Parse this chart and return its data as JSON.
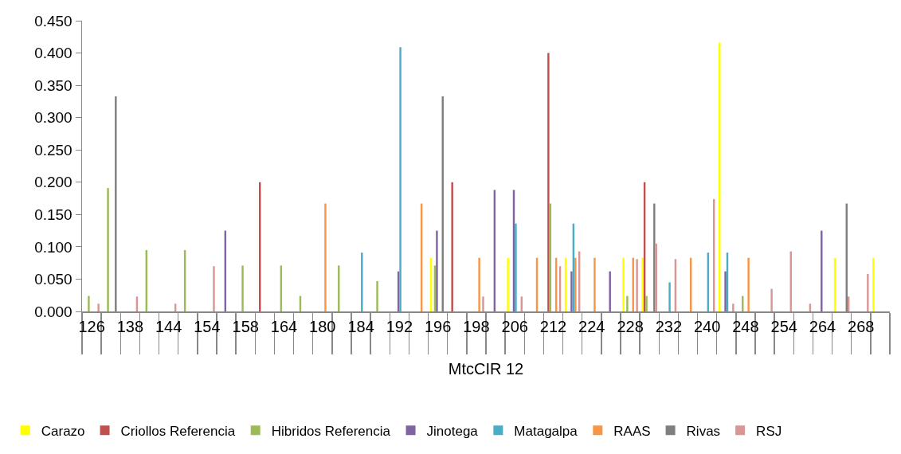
{
  "chart_data": {
    "type": "bar",
    "xlabel": "MtcCIR 12",
    "legend": "bottom",
    "categories": [
      "126",
      null,
      "138",
      null,
      "144",
      null,
      "154",
      null,
      "158",
      null,
      "164",
      null,
      "180",
      null,
      "184",
      null,
      "192",
      null,
      "196",
      null,
      "198",
      null,
      "206",
      null,
      "212",
      null,
      "224",
      null,
      "228",
      null,
      "232",
      null,
      "240",
      null,
      "248",
      null,
      "254",
      null,
      "264",
      null,
      "268",
      null
    ],
    "ylim": [
      0,
      0.45
    ],
    "yticks": [
      {
        "value": 0,
        "label": "0.000"
      },
      {
        "value": 0.05,
        "label": "0.050"
      },
      {
        "value": 0.1,
        "label": "0.100"
      },
      {
        "value": 0.15,
        "label": "0.150"
      },
      {
        "value": 0.2,
        "label": "0.200"
      },
      {
        "value": 0.25,
        "label": "0.250"
      },
      {
        "value": 0.3,
        "label": "0.300"
      },
      {
        "value": 0.35,
        "label": "0.350"
      },
      {
        "value": 0.4,
        "label": "0.400"
      },
      {
        "value": 0.45,
        "label": "0.450"
      }
    ],
    "series": [
      {
        "name": "Carazo",
        "color": "#ffff00",
        "values": [
          null,
          null,
          null,
          null,
          null,
          null,
          null,
          null,
          null,
          null,
          null,
          null,
          null,
          null,
          null,
          null,
          null,
          null,
          0.083,
          null,
          null,
          null,
          0.083,
          null,
          null,
          0.083,
          null,
          null,
          0.083,
          0.083,
          null,
          null,
          null,
          0.416,
          null,
          null,
          null,
          null,
          null,
          0.083,
          null,
          0.083
        ]
      },
      {
        "name": "Criollos Referencia",
        "color": "#c0504d",
        "values": [
          null,
          null,
          null,
          null,
          null,
          null,
          null,
          null,
          null,
          0.2,
          null,
          null,
          null,
          null,
          null,
          null,
          null,
          null,
          null,
          0.2,
          null,
          null,
          null,
          null,
          0.4,
          null,
          null,
          null,
          null,
          0.2,
          null,
          null,
          null,
          null,
          null,
          null,
          null,
          null,
          null,
          null,
          null,
          null
        ]
      },
      {
        "name": "Hibridos Referencia",
        "color": "#9bbb59",
        "values": [
          0.024,
          0.191,
          null,
          0.095,
          null,
          0.095,
          null,
          null,
          0.071,
          null,
          0.071,
          0.024,
          null,
          0.071,
          null,
          0.047,
          null,
          null,
          0.071,
          null,
          null,
          null,
          null,
          null,
          0.167,
          null,
          null,
          null,
          0.024,
          0.024,
          null,
          null,
          null,
          null,
          0.024,
          null,
          null,
          null,
          null,
          null,
          null,
          null
        ]
      },
      {
        "name": "Jinotega",
        "color": "#8064a2",
        "values": [
          null,
          null,
          null,
          null,
          null,
          null,
          null,
          0.125,
          null,
          null,
          null,
          null,
          null,
          null,
          null,
          null,
          0.062,
          null,
          0.125,
          null,
          null,
          0.188,
          0.188,
          null,
          null,
          0.062,
          null,
          0.062,
          null,
          null,
          null,
          null,
          null,
          0.062,
          null,
          null,
          null,
          null,
          0.125,
          null,
          null,
          null
        ]
      },
      {
        "name": "Matagalpa",
        "color": "#4bacc6",
        "values": [
          null,
          null,
          null,
          null,
          null,
          null,
          null,
          null,
          null,
          null,
          null,
          null,
          null,
          null,
          0.091,
          null,
          0.409,
          null,
          null,
          null,
          null,
          null,
          0.136,
          null,
          null,
          0.136,
          null,
          null,
          null,
          null,
          0.045,
          null,
          0.091,
          0.091,
          null,
          null,
          null,
          null,
          null,
          null,
          null,
          null
        ]
      },
      {
        "name": "RAAS",
        "color": "#f79646",
        "values": [
          null,
          null,
          null,
          null,
          null,
          null,
          null,
          null,
          null,
          null,
          null,
          null,
          0.167,
          null,
          null,
          null,
          null,
          0.167,
          null,
          null,
          0.083,
          null,
          null,
          0.083,
          0.083,
          0.083,
          0.083,
          null,
          0.083,
          null,
          null,
          0.083,
          null,
          null,
          0.083,
          null,
          null,
          null,
          null,
          null,
          null,
          null
        ]
      },
      {
        "name": "Rivas",
        "color": "#7f7f7f",
        "values": [
          null,
          0.333,
          null,
          null,
          null,
          null,
          null,
          null,
          null,
          null,
          null,
          null,
          null,
          null,
          null,
          null,
          null,
          null,
          0.333,
          null,
          null,
          null,
          null,
          null,
          null,
          null,
          null,
          null,
          null,
          0.167,
          null,
          null,
          null,
          null,
          null,
          null,
          null,
          null,
          null,
          0.167,
          null,
          null
        ]
      },
      {
        "name": "RSJ",
        "color": "#d99694",
        "values": [
          0.012,
          null,
          0.023,
          null,
          0.012,
          null,
          0.07,
          null,
          null,
          null,
          null,
          null,
          null,
          null,
          null,
          null,
          null,
          null,
          null,
          null,
          0.023,
          null,
          0.023,
          null,
          0.07,
          0.093,
          null,
          null,
          0.081,
          0.105,
          0.081,
          null,
          0.174,
          0.012,
          null,
          0.035,
          0.093,
          0.012,
          null,
          0.023,
          0.058,
          null
        ]
      }
    ]
  }
}
